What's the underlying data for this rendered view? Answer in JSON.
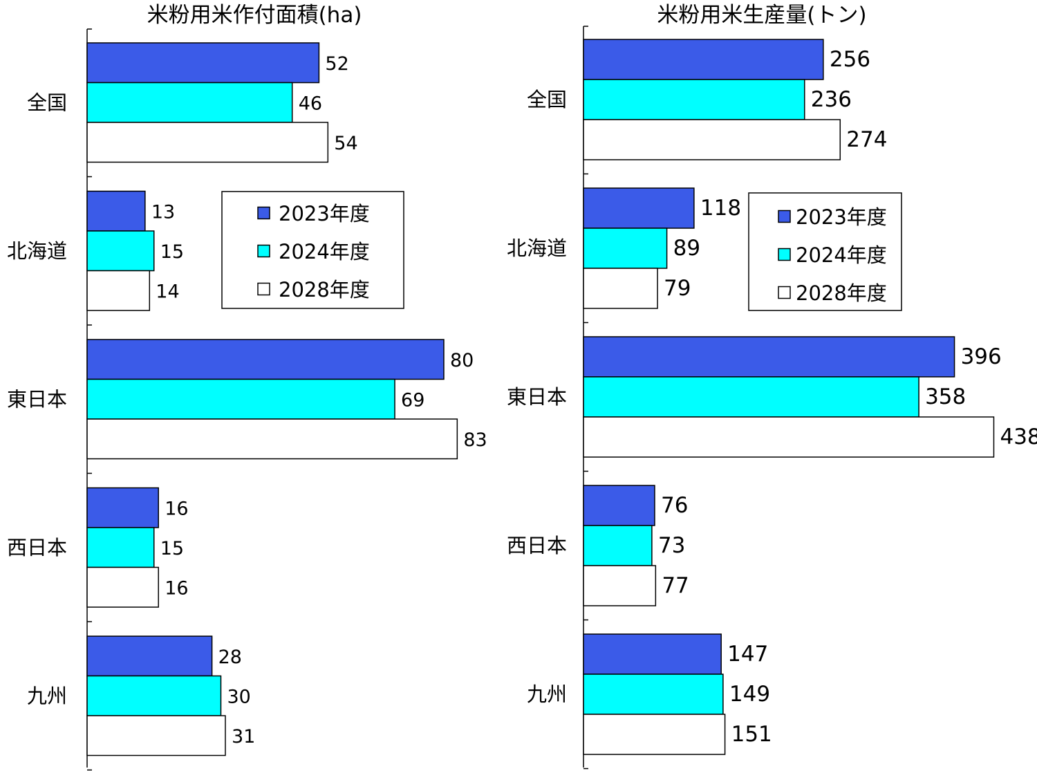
{
  "chart_data": [
    {
      "type": "bar",
      "orientation": "horizontal",
      "title": "米粉用米作付面積(ha)",
      "categories": [
        "全国",
        "北海道",
        "東日本",
        "西日本",
        "九州"
      ],
      "series": [
        {
          "name": "2023年度",
          "color": "#3b5be8",
          "values": [
            52,
            13,
            80,
            16,
            28
          ]
        },
        {
          "name": "2024年度",
          "color": "#00ffff",
          "values": [
            46,
            15,
            69,
            15,
            30
          ]
        },
        {
          "name": "2028年度",
          "color": "#ffffff",
          "values": [
            54,
            14,
            83,
            16,
            31
          ]
        }
      ],
      "xlim": [
        0,
        90
      ],
      "grid": false,
      "legend_position": "center-right"
    },
    {
      "type": "bar",
      "orientation": "horizontal",
      "title": "米粉用米生産量(トン)",
      "categories": [
        "全国",
        "北海道",
        "東日本",
        "西日本",
        "九州"
      ],
      "series": [
        {
          "name": "2023年度",
          "color": "#3b5be8",
          "values": [
            256,
            118,
            396,
            76,
            147
          ]
        },
        {
          "name": "2024年度",
          "color": "#00ffff",
          "values": [
            236,
            89,
            358,
            73,
            149
          ]
        },
        {
          "name": "2028年度",
          "color": "#ffffff",
          "values": [
            274,
            79,
            438,
            77,
            151
          ]
        }
      ],
      "xlim": [
        0,
        460
      ],
      "grid": false,
      "legend_position": "center-right"
    }
  ]
}
